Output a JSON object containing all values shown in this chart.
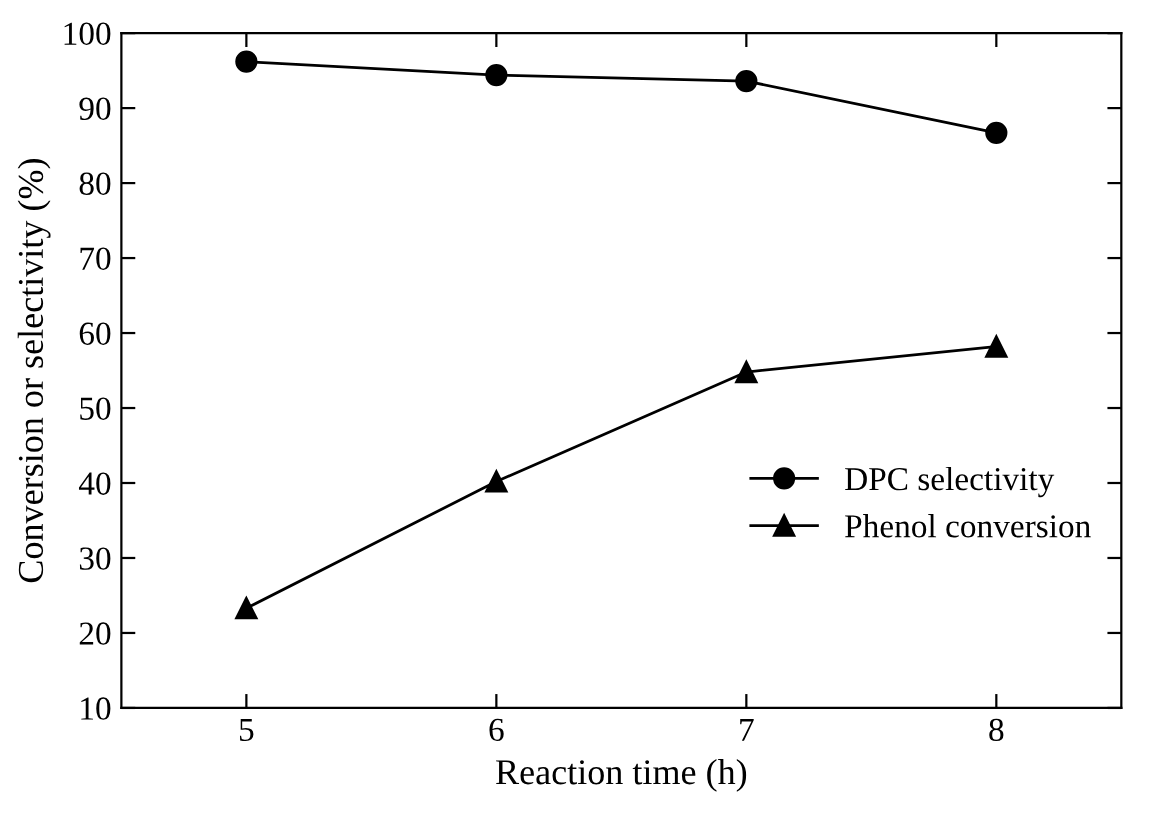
{
  "chart_data": {
    "type": "line",
    "xlabel": "Reaction time (h)",
    "ylabel": "Conversion or selectivity (%)",
    "x": [
      5,
      6,
      7,
      8
    ],
    "series": [
      {
        "name": "DPC selectivity",
        "color": "#000000",
        "marker": "circle",
        "values": [
          96.2,
          94.4,
          93.6,
          86.7
        ]
      },
      {
        "name": "Phenol conversion",
        "color": "#000000",
        "marker": "triangle",
        "values": [
          23.3,
          40.2,
          54.8,
          58.2
        ]
      }
    ],
    "xlim": [
      4.5,
      8.5
    ],
    "xticks": [
      5,
      6,
      7,
      8
    ],
    "ylim": [
      10,
      100
    ],
    "yticks": [
      10,
      20,
      30,
      40,
      50,
      60,
      70,
      80,
      90,
      100
    ],
    "grid": false,
    "legend": "right",
    "line_style": "solid"
  }
}
